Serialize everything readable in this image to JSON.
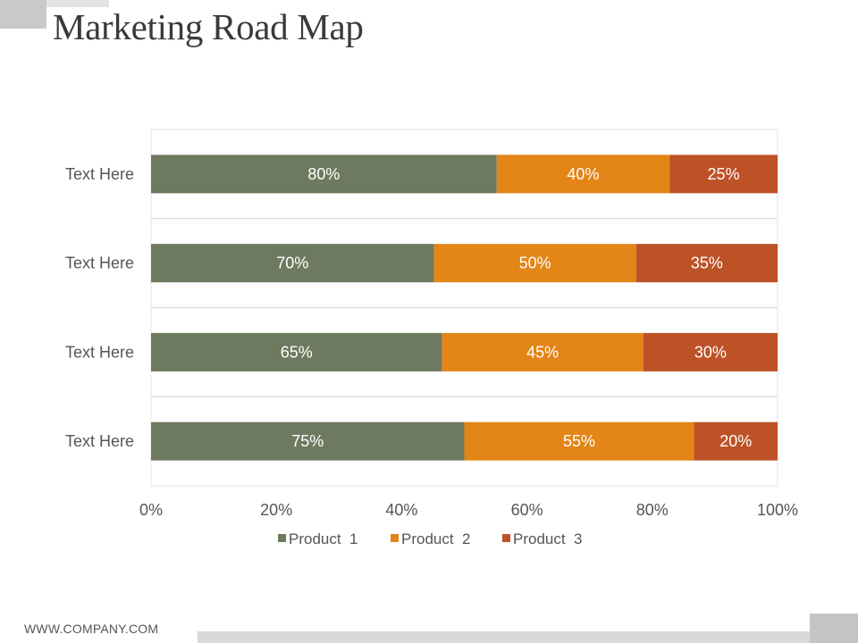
{
  "slide": {
    "title": "Marketing Road Map",
    "footer_url": "WWW.COMPANY.COM"
  },
  "chart_data": {
    "type": "bar",
    "orientation": "horizontal",
    "stacked": "percent",
    "categories": [
      "Text Here",
      "Text Here",
      "Text Here",
      "Text Here"
    ],
    "series": [
      {
        "name": "Product  1",
        "color": "#6e7a5f",
        "values": [
          80,
          70,
          65,
          75
        ]
      },
      {
        "name": "Product  2",
        "color": "#e38517",
        "values": [
          40,
          50,
          45,
          55
        ]
      },
      {
        "name": "Product  3",
        "color": "#be5227",
        "values": [
          25,
          35,
          30,
          20
        ]
      }
    ],
    "data_label_suffix": "%",
    "x_ticks": [
      "0%",
      "20%",
      "40%",
      "60%",
      "80%",
      "100%"
    ],
    "xlim": [
      0,
      100
    ],
    "legend": "bottom",
    "grid": true
  }
}
